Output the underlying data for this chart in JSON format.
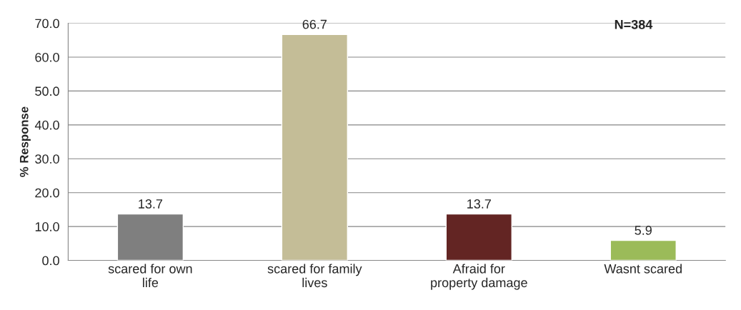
{
  "chart_data": {
    "type": "bar",
    "ylabel": "% Response",
    "categories": [
      "scared for own\nlife",
      "scared for family\nlives",
      "Afraid for\nproperty damage",
      "Wasnt scared"
    ],
    "values": [
      13.7,
      66.7,
      13.7,
      5.9
    ],
    "colors": [
      "#7f7f7f",
      "#c4bd97",
      "#632523",
      "#9bbb59"
    ],
    "value_labels": [
      "13.7",
      "66.7",
      "13.7",
      "5.9"
    ],
    "ylim": [
      0,
      70
    ],
    "yticks": [
      {
        "value": 0,
        "label": "0.0"
      },
      {
        "value": 10,
        "label": "10.0"
      },
      {
        "value": 20,
        "label": "20.0"
      },
      {
        "value": 30,
        "label": "30.0"
      },
      {
        "value": 40,
        "label": "40.0"
      },
      {
        "value": 50,
        "label": "50.0"
      },
      {
        "value": 60,
        "label": "60.0"
      },
      {
        "value": 70,
        "label": "70.0"
      }
    ],
    "grid": "y",
    "annotations": [
      "N=384"
    ]
  }
}
